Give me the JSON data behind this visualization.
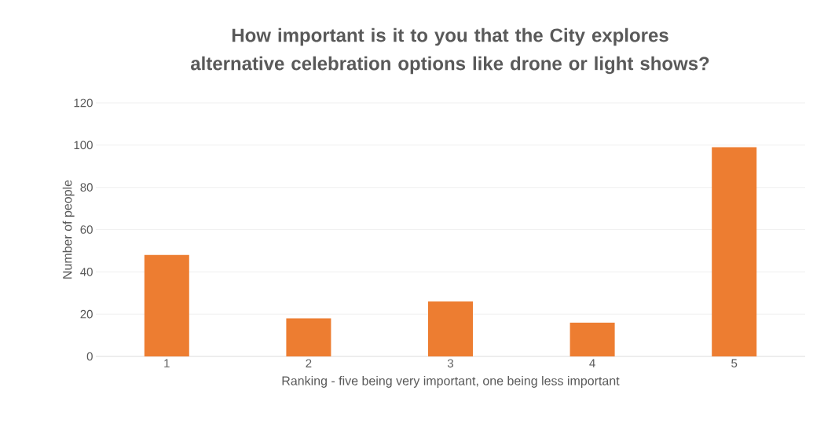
{
  "chart_data": {
    "type": "bar",
    "title": "How important is it to you that the City explores alternative celebration options like drone or light shows?",
    "xlabel": "Ranking - five being very important, one being less important",
    "ylabel": "Number of people",
    "categories": [
      "1",
      "2",
      "3",
      "4",
      "5"
    ],
    "values": [
      48,
      18,
      26,
      16,
      99
    ],
    "color": "#ed7d31",
    "ylim": [
      0,
      120
    ],
    "yticks": [
      0,
      20,
      40,
      60,
      80,
      100,
      120
    ],
    "grid": "y"
  }
}
